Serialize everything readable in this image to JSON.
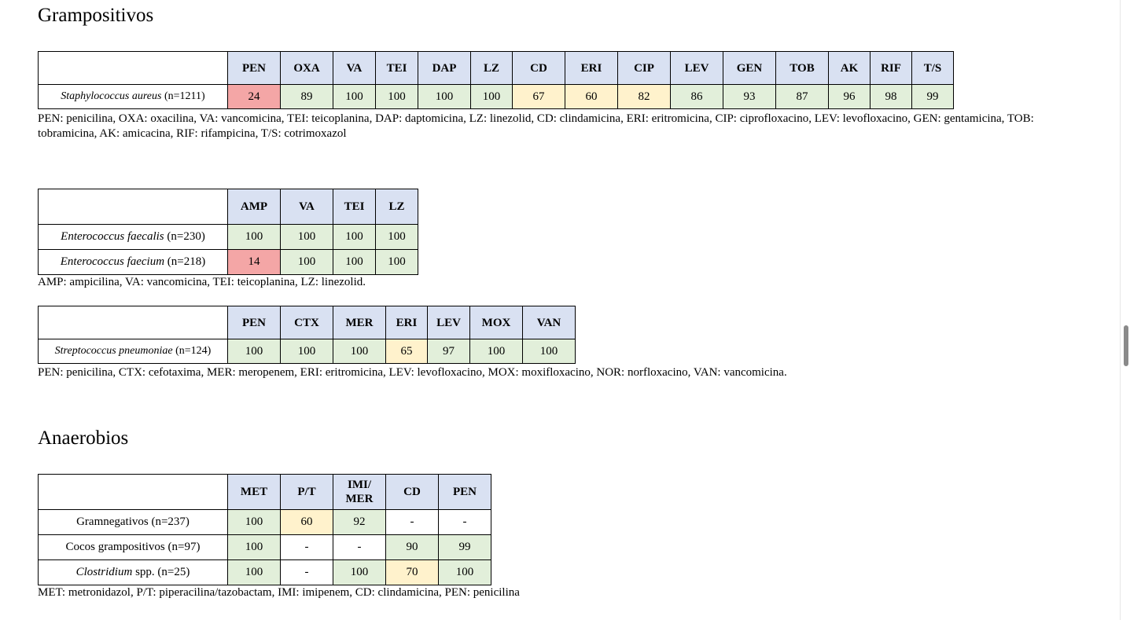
{
  "heading_grampositivos": "Grampositivos",
  "heading_anaerobios": "Anaerobios",
  "staph": {
    "headers": [
      "PEN",
      "OXA",
      "VA",
      "TEI",
      "DAP",
      "LZ",
      "CD",
      "ERI",
      "CIP",
      "LEV",
      "GEN",
      "TOB",
      "AK",
      "RIF",
      "T/S"
    ],
    "organism_italic": "Staphylococcus aureus",
    "organism_n": " (n=1211)",
    "values": [
      "24",
      "89",
      "100",
      "100",
      "100",
      "100",
      "67",
      "60",
      "82",
      "86",
      "93",
      "87",
      "96",
      "98",
      "99"
    ],
    "colors": [
      "r",
      "g",
      "g",
      "g",
      "g",
      "g",
      "y",
      "y",
      "y",
      "g",
      "g",
      "g",
      "g",
      "g",
      "g"
    ],
    "note": "PEN: penicilina, OXA: oxacilina, VA: vancomicina, TEI: teicoplanina, DAP: daptomicina, LZ: linezolid, CD: clindamicina, ERI: eritromicina, CIP: ciprofloxacino, LEV: levofloxacino, GEN: gentamicina, TOB: tobramicina, AK: amicacina, RIF: rifampicina, T/S: cotrimoxazol"
  },
  "entero": {
    "headers": [
      "AMP",
      "VA",
      "TEI",
      "LZ"
    ],
    "rows": [
      {
        "italic": "Enterococcus faecalis",
        "n": " (n=230)",
        "values": [
          "100",
          "100",
          "100",
          "100"
        ],
        "colors": [
          "g",
          "g",
          "g",
          "g"
        ]
      },
      {
        "italic": "Enterococcus faecium",
        "n": " (n=218)",
        "values": [
          "14",
          "100",
          "100",
          "100"
        ],
        "colors": [
          "r",
          "g",
          "g",
          "g"
        ]
      }
    ],
    "note": "AMP: ampicilina, VA: vancomicina, TEI: teicoplanina, LZ: linezolid."
  },
  "strep": {
    "headers": [
      "PEN",
      "CTX",
      "MER",
      "ERI",
      "LEV",
      "MOX",
      "VAN"
    ],
    "organism_italic": "Streptococcus pneumoniae",
    "organism_n": " (n=124)",
    "values": [
      "100",
      "100",
      "100",
      "65",
      "97",
      "100",
      "100"
    ],
    "colors": [
      "g",
      "g",
      "g",
      "y",
      "g",
      "g",
      "g"
    ],
    "note": "PEN: penicilina, CTX: cefotaxima, MER: meropenem, ERI: eritromicina, LEV: levofloxacino, MOX: moxifloxacino, NOR: norfloxacino, VAN: vancomicina."
  },
  "anaer": {
    "headers": [
      "MET",
      "P/T",
      "IMI/ MER",
      "CD",
      "PEN"
    ],
    "rows": [
      {
        "italic": "",
        "n": "Gramnegativos (n=237)",
        "values": [
          "100",
          "60",
          "92",
          "-",
          "-"
        ],
        "colors": [
          "g",
          "y",
          "g",
          "w",
          "w"
        ]
      },
      {
        "italic": "",
        "n": "Cocos grampositivos (n=97)",
        "values": [
          "100",
          "-",
          "-",
          "90",
          "99"
        ],
        "colors": [
          "g",
          "w",
          "w",
          "g",
          "g"
        ]
      },
      {
        "italic": "Clostridium",
        "n": " spp. (n=25)",
        "values": [
          "100",
          "-",
          "100",
          "70",
          "100"
        ],
        "colors": [
          "g",
          "w",
          "g",
          "y",
          "g"
        ]
      }
    ],
    "note": "MET: metronidazol, P/T: piperacilina/tazobactam, IMI: imipenem, CD: clindamicina, PEN: penicilina"
  }
}
